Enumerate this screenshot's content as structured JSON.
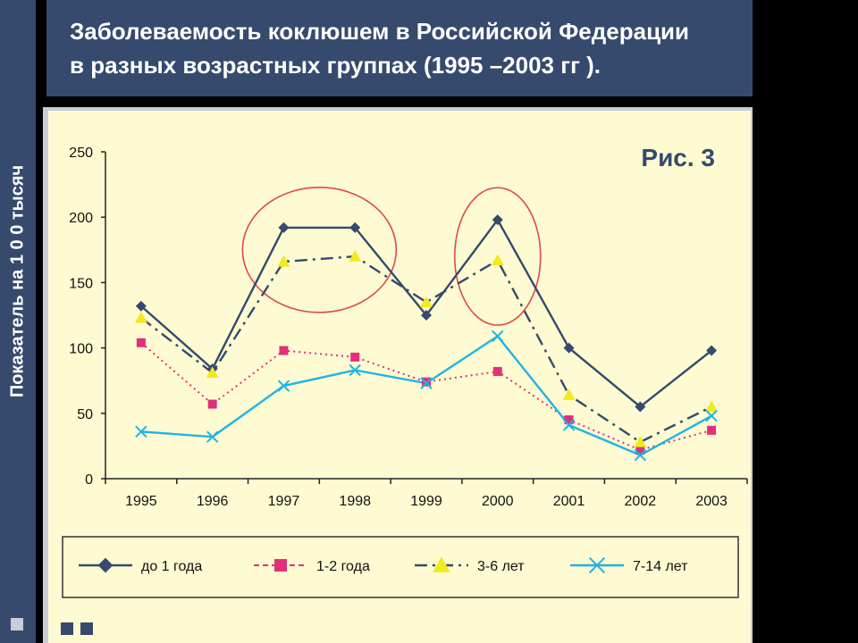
{
  "page": {
    "title_line1": "Заболеваемость коклюшем в Российской Федерации",
    "title_line2": "в разных возрастных группах (1995 –2003 гг ).",
    "side_label": "Показатель на 1 0 0 тысяч",
    "fig_label": "Рис. 3"
  },
  "colors": {
    "background": "#000000",
    "title_bg": "#364a6e",
    "chart_bg": "#fefbd2",
    "highlight_circle": "#e0474c"
  },
  "chart_data": {
    "type": "line",
    "title": "",
    "xlabel": "",
    "ylabel": "Показатель на 1 0 0 тысяч",
    "ylim": [
      0,
      250
    ],
    "yticks": [
      0,
      50,
      100,
      150,
      200,
      250
    ],
    "categories": [
      "1995",
      "1996",
      "1997",
      "1998",
      "1999",
      "2000",
      "2001",
      "2002",
      "2003"
    ],
    "grid": false,
    "legend_position": "bottom",
    "series": [
      {
        "name": "до 1 года",
        "values": [
          132,
          84,
          192,
          192,
          125,
          198,
          100,
          55,
          98
        ],
        "color": "#364a6e",
        "marker": "diamond",
        "dash": "solid"
      },
      {
        "name": "1-2 года",
        "values": [
          104,
          57,
          98,
          93,
          74,
          82,
          45,
          22,
          37
        ],
        "color": "#e0307a",
        "marker": "square",
        "dash": "dotted"
      },
      {
        "name": "3-6 лет",
        "values": [
          123,
          81,
          166,
          170,
          135,
          167,
          64,
          28,
          55
        ],
        "color": "#364a6e",
        "marker": "triangle",
        "marker_color": "#f2ea1c",
        "dash": "dashdot"
      },
      {
        "name": "7-14 лет",
        "values": [
          36,
          32,
          71,
          83,
          73,
          109,
          41,
          18,
          48
        ],
        "color": "#1eb4e6",
        "marker": "x",
        "dash": "solid"
      }
    ],
    "annotations": [
      "highlight ellipse around 1997–1998",
      "highlight ellipse around 2000"
    ]
  }
}
